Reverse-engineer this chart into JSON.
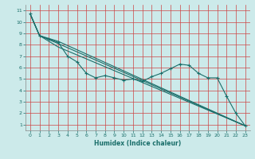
{
  "xlabel": "Humidex (Indice chaleur)",
  "bg_color": "#cceaea",
  "grid_color": "#cc4444",
  "line_color": "#1a6e6a",
  "xlim": [
    -0.5,
    23.5
  ],
  "ylim": [
    0.5,
    11.5
  ],
  "xticks": [
    0,
    1,
    2,
    3,
    4,
    5,
    6,
    7,
    8,
    9,
    10,
    11,
    12,
    13,
    14,
    15,
    16,
    17,
    18,
    19,
    20,
    21,
    22,
    23
  ],
  "yticks": [
    1,
    2,
    3,
    4,
    5,
    6,
    7,
    8,
    9,
    10,
    11
  ],
  "line1_x": [
    0,
    1,
    2,
    3,
    4,
    5,
    6,
    7,
    8,
    9,
    10,
    11,
    12,
    13,
    14,
    15,
    16,
    17,
    18,
    19,
    20,
    21,
    22,
    23
  ],
  "line1_y": [
    10.7,
    8.8,
    8.5,
    8.2,
    7.0,
    6.5,
    5.5,
    5.1,
    5.3,
    5.1,
    4.9,
    5.0,
    4.8,
    5.2,
    5.5,
    5.9,
    6.3,
    6.2,
    5.5,
    5.1,
    5.1,
    3.5,
    2.0,
    0.9
  ],
  "line2_x": [
    0,
    1,
    3,
    23
  ],
  "line2_y": [
    10.7,
    8.8,
    8.3,
    0.9
  ],
  "line3_x": [
    0,
    1,
    3,
    23
  ],
  "line3_y": [
    10.7,
    8.8,
    8.1,
    0.9
  ],
  "line4_x": [
    0,
    1,
    3,
    23
  ],
  "line4_y": [
    10.7,
    8.8,
    7.8,
    0.9
  ]
}
